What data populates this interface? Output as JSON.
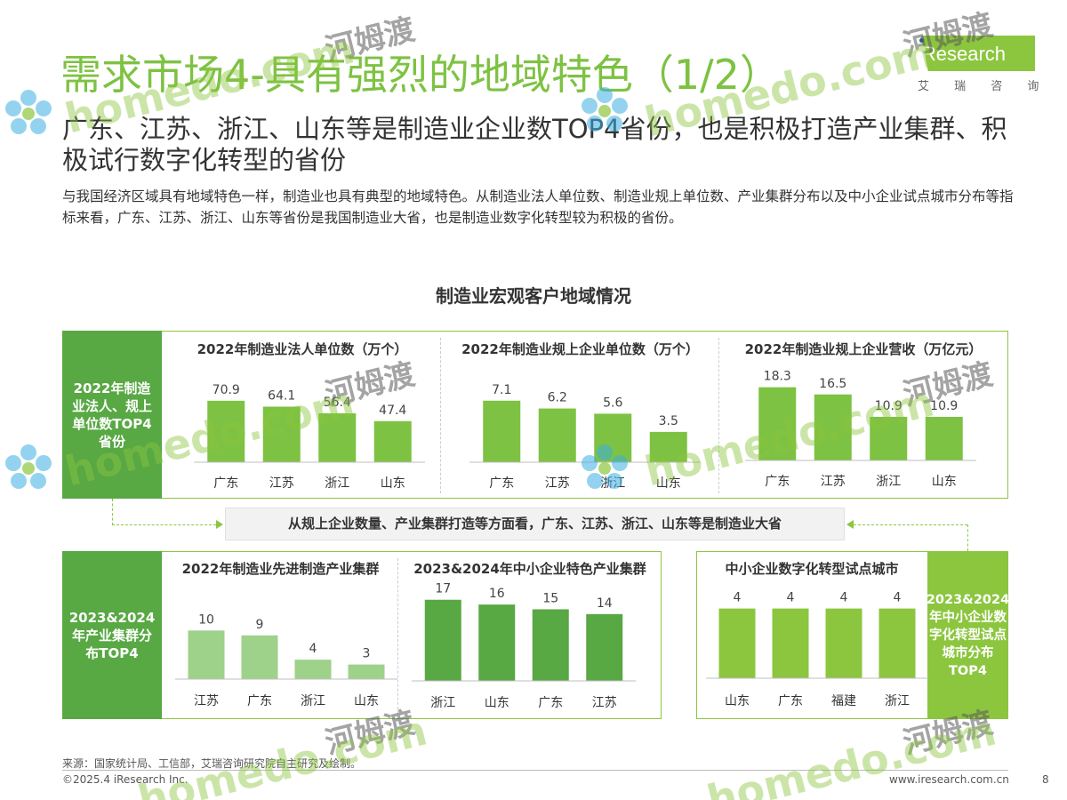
{
  "header": {
    "page_title": "需求市场4-具有强烈的地域特色（1/2）",
    "subtitle": "广东、江苏、浙江、山东等是制造业企业数TOP4省份，也是积极打造产业集群、积极试行数字化转型的省份",
    "intro": "与我国经济区域具有地域特色一样，制造业也具有典型的地域特色。从制造业法人单位数、制造业规上单位数、产业集群分布以及中小企业试点城市分布等指标来看，广东、江苏、浙江、山东等省份是我国制造业大省，也是制造业数字化转型较为积极的省份。"
  },
  "logo": {
    "name": "iResearch",
    "subtitle": "艾 瑞 咨 询"
  },
  "main_title": "制造业宏观客户地域情况",
  "side_labels": {
    "top_left": "2022年制造业法人、规上单位数TOP4省份",
    "bottom_left": "2023&2024年产业集群分布TOP4",
    "bottom_right": "2023&2024年中小企业数字化转型试点城市分布TOP4"
  },
  "conclusion": "从规上企业数量、产业集群打造等方面看，广东、江苏、浙江、山东等是制造业大省",
  "colors": {
    "dark_green": "#58a844",
    "mid_green": "#7dc242",
    "bright_green": "#8cc63f",
    "light_green": "#9ed18a"
  },
  "chart_data": [
    {
      "type": "bar",
      "title": "2022年制造业法人单位数（万个）",
      "categories": [
        "广东",
        "江苏",
        "浙江",
        "山东"
      ],
      "values": [
        70.9,
        64.1,
        56.4,
        47.4
      ],
      "labels": [
        "70.9",
        "64.1",
        "56.4",
        "47.4"
      ],
      "ylim": [
        0,
        80
      ]
    },
    {
      "type": "bar",
      "title": "2022年制造业规上企业单位数（万个）",
      "categories": [
        "广东",
        "江苏",
        "浙江",
        "山东"
      ],
      "values": [
        7.1,
        6.2,
        5.6,
        3.5
      ],
      "labels": [
        "7.1",
        "6.2",
        "5.6",
        "3.5"
      ],
      "ylim": [
        0,
        8
      ]
    },
    {
      "type": "bar",
      "title": "2022年制造业规上企业营收（万亿元）",
      "categories": [
        "广东",
        "江苏",
        "浙江",
        "山东"
      ],
      "values": [
        18.3,
        16.5,
        10.9,
        10.9
      ],
      "labels": [
        "18.3",
        "16.5",
        "10.9",
        "10.9"
      ],
      "ylim": [
        0,
        20
      ]
    },
    {
      "type": "bar",
      "title": "2022年制造业先进制造产业集群",
      "categories": [
        "江苏",
        "广东",
        "浙江",
        "山东"
      ],
      "values": [
        10,
        9,
        4,
        3
      ],
      "labels": [
        "10",
        "9",
        "4",
        "3"
      ],
      "ylim": [
        0,
        15
      ]
    },
    {
      "type": "bar",
      "title": "2023&2024年中小企业特色产业集群",
      "categories": [
        "浙江",
        "山东",
        "广东",
        "江苏"
      ],
      "values": [
        17,
        16,
        15,
        14
      ],
      "labels": [
        "17",
        "16",
        "15",
        "14"
      ],
      "ylim": [
        0,
        19
      ]
    },
    {
      "type": "bar",
      "title": "中小企业数字化转型试点城市",
      "categories": [
        "山东",
        "广东",
        "福建",
        "浙江"
      ],
      "values": [
        4,
        4,
        4,
        4
      ],
      "labels": [
        "4",
        "4",
        "4",
        "4"
      ],
      "ylim": [
        0,
        5
      ]
    }
  ],
  "footer": {
    "source": "来源：国家统计局、工信部，艾瑞咨询研究院自主研究及绘制。",
    "copyright": "©2025.4 iResearch Inc.",
    "website": "www.iresearch.com.cn",
    "page_number": "8"
  },
  "watermark": {
    "en": "homedo.com",
    "cn": "河姆渡"
  }
}
